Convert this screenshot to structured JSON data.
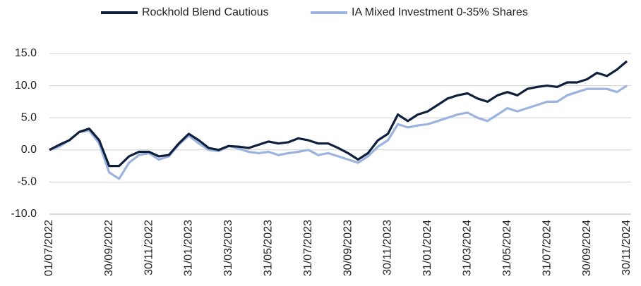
{
  "chart_data": {
    "type": "line",
    "categories": [
      "01/07/2022",
      null,
      null,
      null,
      null,
      null,
      "30/09/2022",
      null,
      null,
      null,
      "30/11/2022",
      null,
      null,
      null,
      "31/01/2023",
      null,
      null,
      null,
      "31/03/2023",
      null,
      null,
      null,
      "31/05/2023",
      null,
      null,
      null,
      "31/07/2023",
      null,
      null,
      null,
      "30/09/2023",
      null,
      null,
      null,
      "30/11/2023",
      null,
      null,
      null,
      "31/01/2024",
      null,
      null,
      null,
      "31/03/2024",
      null,
      null,
      null,
      "31/05/2024",
      null,
      null,
      null,
      "31/07/2024",
      null,
      null,
      null,
      "30/09/2024",
      null,
      null,
      null,
      "30/11/2024"
    ],
    "series": [
      {
        "name": "Rockhold Blend Cautious",
        "color": "#0d1f3c",
        "values": [
          0,
          0.8,
          1.5,
          2.8,
          3.3,
          1.5,
          -2.5,
          -2.5,
          -1.0,
          -0.3,
          -0.3,
          -1.0,
          -0.8,
          1.0,
          2.5,
          1.5,
          0.3,
          0.0,
          0.6,
          0.5,
          0.3,
          0.8,
          1.3,
          1.0,
          1.2,
          1.8,
          1.5,
          1.0,
          1.0,
          0.3,
          -0.5,
          -1.5,
          -0.5,
          1.5,
          2.5,
          5.5,
          4.5,
          5.5,
          6.0,
          7.0,
          8.0,
          8.5,
          8.8,
          8.0,
          7.5,
          8.5,
          9.0,
          8.5,
          9.5,
          9.8,
          10.0,
          9.8,
          10.5,
          10.5,
          11.0,
          12.0,
          11.5,
          12.5,
          13.8
        ]
      },
      {
        "name": "IA Mixed Investment 0-35% Shares",
        "color": "#9bb3de",
        "values": [
          0,
          0.5,
          1.5,
          2.8,
          3.0,
          1.0,
          -3.5,
          -4.5,
          -2.0,
          -0.8,
          -0.5,
          -1.5,
          -1.0,
          0.8,
          2.2,
          1.0,
          0.0,
          -0.2,
          0.6,
          0.2,
          -0.3,
          -0.5,
          -0.3,
          -0.8,
          -0.5,
          -0.3,
          0.0,
          -0.8,
          -0.5,
          -1.0,
          -1.5,
          -2.0,
          -1.0,
          0.5,
          1.5,
          4.0,
          3.5,
          3.8,
          4.0,
          4.5,
          5.0,
          5.5,
          5.8,
          5.0,
          4.5,
          5.5,
          6.5,
          6.0,
          6.5,
          7.0,
          7.5,
          7.5,
          8.5,
          9.0,
          9.5,
          9.5,
          9.5,
          9.0,
          10.0
        ]
      }
    ],
    "ylim": [
      -10,
      15
    ],
    "yticks": [
      {
        "value": -10,
        "label": "-10.0"
      },
      {
        "value": -5,
        "label": "-5.0"
      },
      {
        "value": 0,
        "label": "0.0"
      },
      {
        "value": 5,
        "label": "5.0"
      },
      {
        "value": 10,
        "label": "10.0"
      },
      {
        "value": 15,
        "label": "15.0"
      }
    ],
    "grid": true,
    "legend": "top"
  }
}
